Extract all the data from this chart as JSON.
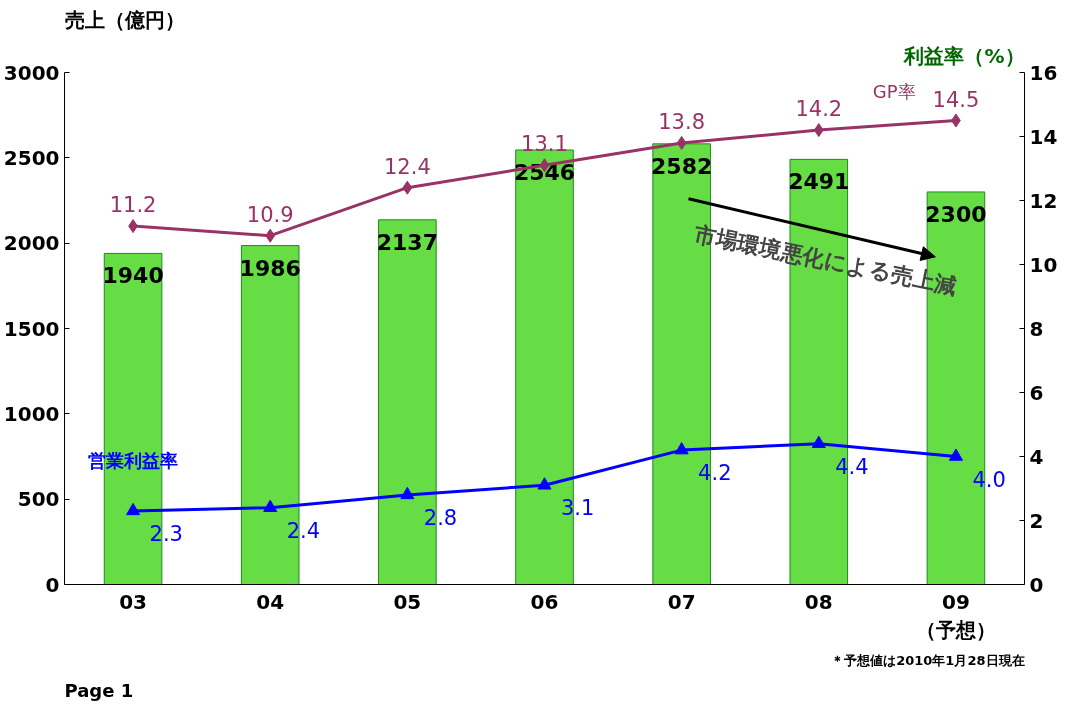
{
  "chart_data": {
    "type": "bar",
    "categories": [
      "03",
      "04",
      "05",
      "06",
      "07",
      "08",
      "09\n（予想）"
    ],
    "ylabel": "売上（億円）",
    "y2label": "利益率（%）",
    "ylim": [
      0,
      3000
    ],
    "yticks": [
      0,
      500,
      1000,
      1500,
      2000,
      2500,
      3000
    ],
    "y2lim": [
      0,
      16
    ],
    "y2ticks": [
      0,
      2,
      4,
      6,
      8,
      10,
      12,
      14,
      16
    ],
    "series": [
      {
        "color": "#66dd44",
        "values": [
          1940,
          1986,
          2137,
          2546,
          2582,
          2491,
          2300
        ],
        "value_labels": [
          "1940",
          "1986",
          "2137",
          "2546",
          "2582",
          "2491",
          "2300"
        ]
      },
      {
        "type": "line",
        "name": "GP率",
        "axis": "y2",
        "color": "#993366",
        "marker": "diamond",
        "values": [
          11.2,
          10.9,
          12.4,
          13.1,
          13.8,
          14.2,
          14.5
        ],
        "value_labels": [
          "11.2",
          "10.9",
          "12.4",
          "13.1",
          "13.8",
          "14.2",
          "14.5"
        ]
      },
      {
        "type": "line",
        "name": "営業利益率",
        "axis": "y2",
        "color": "#0000ff",
        "marker": "triangle",
        "values": [
          2.3,
          2.4,
          2.8,
          3.1,
          4.2,
          4.4,
          4.0
        ],
        "value_labels": [
          "2.3",
          "2.4",
          "2.8",
          "3.1",
          "4.2",
          "4.4",
          "4.0"
        ]
      }
    ],
    "grid": false,
    "annotations": [
      "市場環境悪化による売上減",
      "＊予想値は2010年1月28日現在",
      "Page 1"
    ]
  }
}
